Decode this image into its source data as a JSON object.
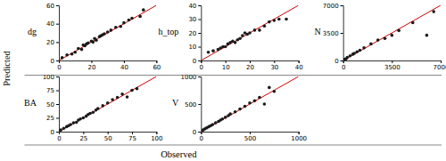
{
  "y_label": "Predicted",
  "x_label": "Observed",
  "chart_data": [
    {
      "type": "scatter",
      "title": "dg",
      "xlim": [
        0,
        60
      ],
      "ylim": [
        0,
        60
      ],
      "xticks": [
        0,
        20,
        40,
        60
      ],
      "yticks": [
        0,
        20,
        40,
        60
      ],
      "series": [
        {
          "type": "scatter",
          "color": "#1a1a1a",
          "x": [
            2,
            5,
            8,
            10,
            12,
            14,
            15,
            16,
            17,
            18,
            20,
            21,
            22,
            23,
            25,
            26,
            27,
            28,
            30,
            32,
            35,
            38,
            40,
            43,
            45,
            50,
            52
          ],
          "values": [
            3,
            6,
            7,
            9,
            13,
            12,
            17,
            16,
            18,
            19,
            21,
            20,
            24,
            22,
            26,
            27,
            28,
            29,
            31,
            33,
            36,
            37,
            41,
            44,
            46,
            48,
            55
          ]
        },
        {
          "type": "line",
          "color": "#cc0000",
          "x": [
            0,
            60
          ],
          "values": [
            0,
            60
          ]
        }
      ]
    },
    {
      "type": "scatter",
      "title": "h_top",
      "xlim": [
        0,
        40
      ],
      "ylim": [
        0,
        40
      ],
      "xticks": [
        0,
        10,
        20,
        30,
        40
      ],
      "yticks": [
        0,
        10,
        20,
        30,
        40
      ],
      "series": [
        {
          "type": "scatter",
          "color": "#1a1a1a",
          "x": [
            3,
            5,
            7,
            8,
            9,
            10,
            11,
            12,
            13,
            14,
            15,
            16,
            17,
            18,
            19,
            20,
            22,
            24,
            26,
            28,
            30,
            32,
            35
          ],
          "values": [
            6,
            7,
            8,
            9,
            10,
            10,
            12,
            13,
            14,
            13,
            15,
            16,
            18,
            20,
            19,
            20,
            22,
            22,
            25,
            28,
            29,
            30,
            30
          ]
        },
        {
          "type": "line",
          "color": "#cc0000",
          "x": [
            0,
            40
          ],
          "values": [
            0,
            40
          ]
        }
      ]
    },
    {
      "type": "scatter",
      "title": "N",
      "xlim": [
        0,
        7000
      ],
      "ylim": [
        0,
        7000
      ],
      "xticks": [
        0,
        3500,
        7000
      ],
      "yticks": [
        0,
        3500,
        7000
      ],
      "series": [
        {
          "type": "scatter",
          "color": "#1a1a1a",
          "x": [
            100,
            200,
            300,
            500,
            700,
            800,
            1000,
            1200,
            1500,
            2000,
            2500,
            3000,
            3500,
            4000,
            5000,
            6000,
            6500
          ],
          "values": [
            150,
            200,
            400,
            600,
            800,
            900,
            1100,
            1300,
            1600,
            2100,
            2600,
            2800,
            3200,
            3800,
            4800,
            3200,
            6200
          ]
        },
        {
          "type": "line",
          "color": "#cc0000",
          "x": [
            0,
            7000
          ],
          "values": [
            0,
            7000
          ]
        }
      ]
    },
    {
      "type": "scatter",
      "title": "BA",
      "xlim": [
        0,
        100
      ],
      "ylim": [
        0,
        100
      ],
      "xticks": [
        0,
        25,
        50,
        75,
        100
      ],
      "yticks": [
        0,
        25,
        50,
        75,
        100
      ],
      "series": [
        {
          "type": "scatter",
          "color": "#1a1a1a",
          "x": [
            2,
            5,
            8,
            10,
            12,
            15,
            18,
            20,
            22,
            25,
            28,
            30,
            32,
            35,
            38,
            40,
            45,
            50,
            55,
            60,
            65,
            70,
            75,
            80
          ],
          "values": [
            3,
            6,
            9,
            11,
            13,
            16,
            17,
            21,
            23,
            25,
            28,
            31,
            33,
            35,
            39,
            42,
            47,
            52,
            58,
            62,
            68,
            63,
            75,
            78
          ]
        },
        {
          "type": "line",
          "color": "#cc0000",
          "x": [
            0,
            100
          ],
          "values": [
            0,
            100
          ]
        }
      ]
    },
    {
      "type": "scatter",
      "title": "V",
      "xlim": [
        0,
        1000
      ],
      "ylim": [
        0,
        1000
      ],
      "xticks": [
        0,
        500,
        1000
      ],
      "yticks": [
        0,
        500,
        1000
      ],
      "series": [
        {
          "type": "scatter",
          "color": "#1a1a1a",
          "x": [
            20,
            40,
            60,
            80,
            100,
            120,
            150,
            180,
            200,
            220,
            250,
            280,
            300,
            350,
            400,
            450,
            500,
            550,
            600,
            650,
            700,
            750
          ],
          "values": [
            30,
            50,
            70,
            90,
            110,
            130,
            160,
            185,
            210,
            230,
            260,
            290,
            320,
            360,
            410,
            460,
            520,
            560,
            620,
            500,
            800,
            730
          ]
        },
        {
          "type": "line",
          "color": "#cc0000",
          "x": [
            0,
            1000
          ],
          "values": [
            0,
            1000
          ]
        }
      ]
    }
  ]
}
